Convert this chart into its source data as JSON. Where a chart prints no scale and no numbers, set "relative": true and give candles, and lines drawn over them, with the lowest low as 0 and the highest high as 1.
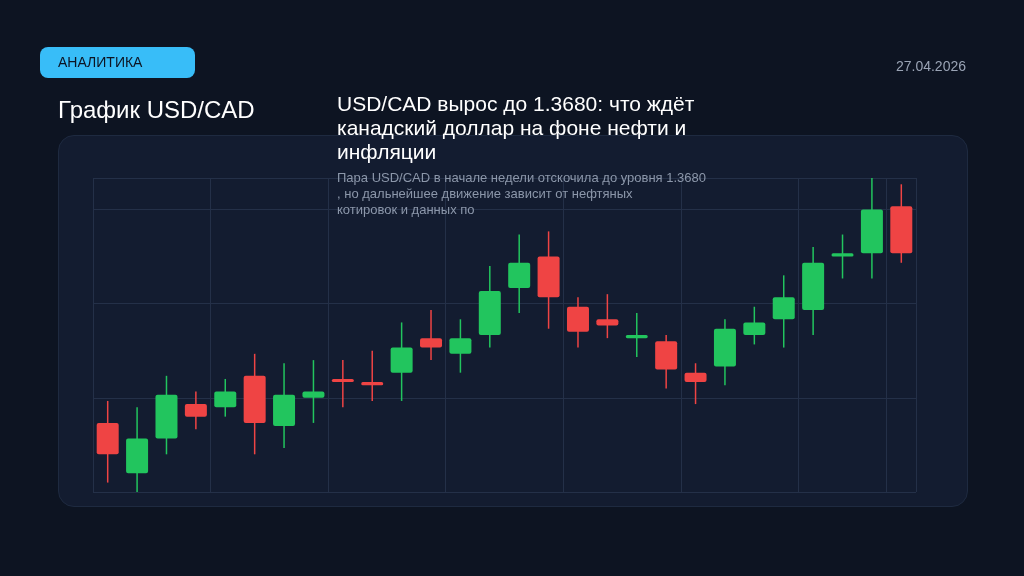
{
  "chart_data": {
    "type": "candlestick",
    "title": "USD/CAD вырос до 1.3680: что ждёт канадский доллар на фоне нефти и инфляции",
    "subtitle": "Пара USD/CAD в начале недели отскочила до уровня 1.3680, но дальнейшее движение зависит от нефтяных котировок и данных по",
    "annotations": [
      "АНАЛИТИКА",
      "27.04.2026",
      "График USD/CAD"
    ],
    "relative": true,
    "grid": true,
    "categories": [
      null,
      null,
      null,
      null,
      null,
      null,
      null,
      null,
      null,
      null,
      null,
      null,
      null,
      null,
      null,
      null,
      null,
      null,
      null,
      null,
      null,
      null,
      null,
      null,
      null,
      null,
      null,
      null
    ],
    "ohlc": [
      [
        0.22,
        0.29,
        0.03,
        0.12
      ],
      [
        0.06,
        0.27,
        0,
        0.17
      ],
      [
        0.17,
        0.37,
        0.12,
        0.31
      ],
      [
        0.28,
        0.32,
        0.2,
        0.24
      ],
      [
        0.27,
        0.36,
        0.24,
        0.32
      ],
      [
        0.37,
        0.44,
        0.12,
        0.22
      ],
      [
        0.21,
        0.41,
        0.14,
        0.31
      ],
      [
        0.3,
        0.42,
        0.22,
        0.32
      ],
      [
        0.36,
        0.42,
        0.27,
        0.35
      ],
      [
        0.35,
        0.45,
        0.29,
        0.34
      ],
      [
        0.38,
        0.54,
        0.29,
        0.46
      ],
      [
        0.49,
        0.58,
        0.42,
        0.46
      ],
      [
        0.44,
        0.55,
        0.38,
        0.49
      ],
      [
        0.5,
        0.72,
        0.46,
        0.64
      ],
      [
        0.65,
        0.82,
        0.57,
        0.73
      ],
      [
        0.75,
        0.83,
        0.52,
        0.62
      ],
      [
        0.59,
        0.62,
        0.46,
        0.51
      ],
      [
        0.55,
        0.63,
        0.49,
        0.53
      ],
      [
        0.49,
        0.57,
        0.43,
        0.5
      ],
      [
        0.48,
        0.5,
        0.33,
        0.39
      ],
      [
        0.38,
        0.41,
        0.28,
        0.35
      ],
      [
        0.4,
        0.55,
        0.34,
        0.52
      ],
      [
        0.5,
        0.59,
        0.47,
        0.54
      ],
      [
        0.55,
        0.69,
        0.46,
        0.62
      ],
      [
        0.58,
        0.78,
        0.5,
        0.73
      ],
      [
        0.75,
        0.82,
        0.68,
        0.76
      ],
      [
        0.76,
        1,
        0.68,
        0.9
      ],
      [
        0.91,
        0.98,
        0.73,
        0.76
      ]
    ],
    "colors": [
      "#ef4444",
      "#22c55e",
      "#22c55e",
      "#ef4444",
      "#22c55e",
      "#ef4444",
      "#22c55e",
      "#22c55e",
      "#ef4444",
      "#ef4444",
      "#22c55e",
      "#ef4444",
      "#22c55e",
      "#22c55e",
      "#22c55e",
      "#ef4444",
      "#ef4444",
      "#ef4444",
      "#22c55e",
      "#ef4444",
      "#ef4444",
      "#22c55e",
      "#22c55e",
      "#22c55e",
      "#22c55e",
      "#22c55e",
      "#22c55e",
      "#ef4444"
    ]
  }
}
